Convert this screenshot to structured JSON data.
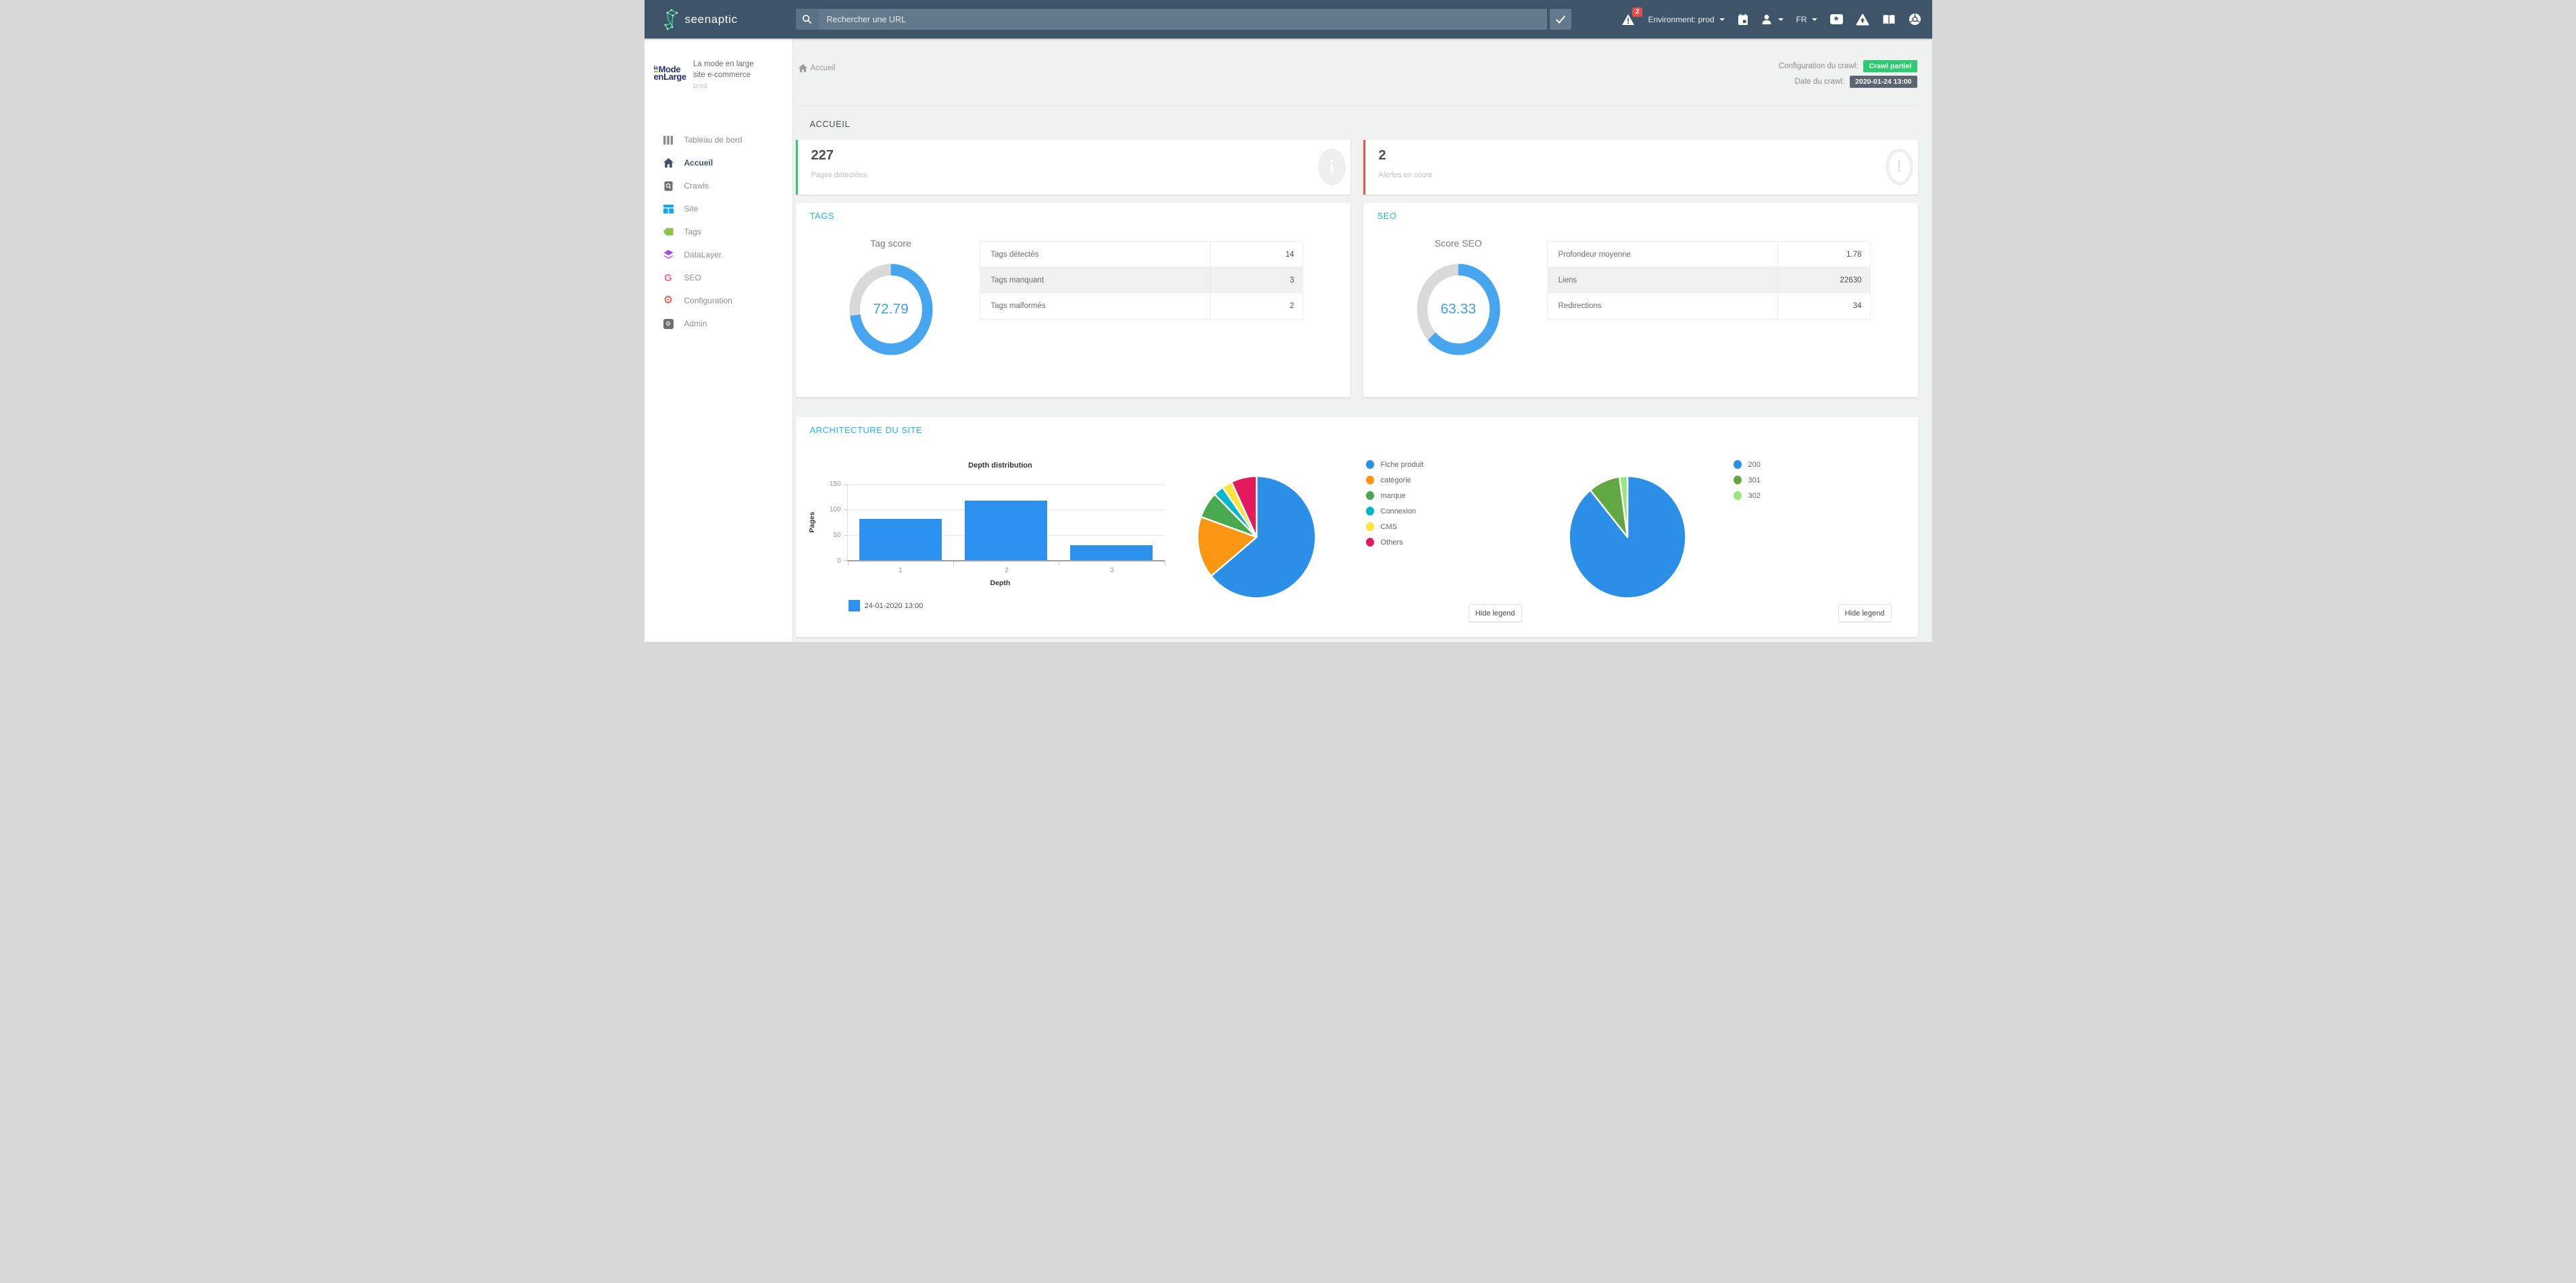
{
  "theme": {
    "navbar_bg": "#3e5569",
    "accent_blue": "#25b2f5",
    "green": "#2ecc71",
    "red": "#ef5350",
    "badge_dark": "#5d6670"
  },
  "navbar": {
    "brand": "seenaptic",
    "search_placeholder": "Rechercher une URL",
    "alerts_badge": "2",
    "environment_label": "Environment: prod",
    "language_label": "FR"
  },
  "sidebar": {
    "logo_small": "la",
    "logo_line1": "Mode",
    "logo_line2": "enLarge",
    "site_name_line1": "La mode en large",
    "site_name_line2": "site e-commerce",
    "site_env": "prod",
    "items": [
      {
        "label": "Tableau de bord"
      },
      {
        "label": "Accueil",
        "active": true
      },
      {
        "label": "Crawls"
      },
      {
        "label": "Site"
      },
      {
        "label": "Tags"
      },
      {
        "label": "DataLayer"
      },
      {
        "label": "SEO"
      },
      {
        "label": "Configuration"
      },
      {
        "label": "Admin"
      }
    ]
  },
  "breadcrumb": {
    "home_label": "Accueil"
  },
  "crawl_info": {
    "config_label": "Configuration du crawl:",
    "config_value": "Crawl partiel",
    "config_badge_color": "#2ecc71",
    "date_label": "Date du crawl:",
    "date_value": "2020-01-24 13:00",
    "date_badge_color": "#5d6670"
  },
  "page": {
    "section_title": "ACCUEIL"
  },
  "stat_cards": [
    {
      "value": "227",
      "label": "Pages détectées",
      "accent": "#2ecc71",
      "icon_glyph": "i"
    },
    {
      "value": "2",
      "label": "Alertes en cours",
      "accent": "#ef5350",
      "icon_glyph": "!"
    }
  ],
  "tags_card": {
    "title": "TAGS",
    "gauge_label": "Tag score",
    "table": [
      {
        "label": "Tags détectés",
        "value": "14"
      },
      {
        "label": "Tags manquant",
        "value": "3"
      },
      {
        "label": "Tags malformés",
        "value": "2"
      }
    ]
  },
  "seo_card": {
    "title": "SEO",
    "gauge_label": "Score SEO",
    "table": [
      {
        "label": "Profondeur moyenne",
        "value": "1.78"
      },
      {
        "label": "Liens",
        "value": "22630"
      },
      {
        "label": "Redirections",
        "value": "34"
      }
    ]
  },
  "architecture_card": {
    "title": "ARCHITECTURE DU SITE",
    "hide_legend_label": "Hide legend"
  },
  "chart_data": [
    {
      "type": "donut",
      "title": "Tag score",
      "value": 72.79,
      "max": 100,
      "color": "#47a4ef",
      "track_color": "#d9d9d9"
    },
    {
      "type": "donut",
      "title": "Score SEO",
      "value": 63.33,
      "max": 100,
      "color": "#47a4ef",
      "track_color": "#d9d9d9"
    },
    {
      "type": "bar",
      "title": "Depth distribution",
      "xlabel": "Depth",
      "ylabel": "Pages",
      "categories": [
        "1",
        "2",
        "3"
      ],
      "values": [
        82,
        118,
        30
      ],
      "ylim": [
        0,
        150
      ],
      "yticks": [
        150,
        100,
        50,
        0
      ],
      "colors": [
        "#2b90ee"
      ],
      "grid": true,
      "legend": [
        {
          "label": "24-01-2020 13:00"
        }
      ],
      "legend_position": "bottom-left"
    },
    {
      "type": "pie",
      "labels": [
        "Fiche produit",
        "catégorie",
        "marque",
        "Connexion",
        "CMS",
        "Others"
      ],
      "values": [
        64,
        16.4,
        7,
        2.8,
        2.8,
        7
      ],
      "values_are_percent": true,
      "colors": [
        "#2b8fe8",
        "#fb9612",
        "#4aa84e",
        "#00b8cc",
        "#fce33b",
        "#e5195e"
      ],
      "legend_position": "right"
    },
    {
      "type": "pie",
      "labels": [
        "200",
        "301",
        "302"
      ],
      "values": [
        89,
        8.8,
        2.2
      ],
      "values_are_percent": true,
      "colors": [
        "#2b8fe8",
        "#62a842",
        "#97e67f"
      ],
      "legend_position": "right"
    }
  ]
}
